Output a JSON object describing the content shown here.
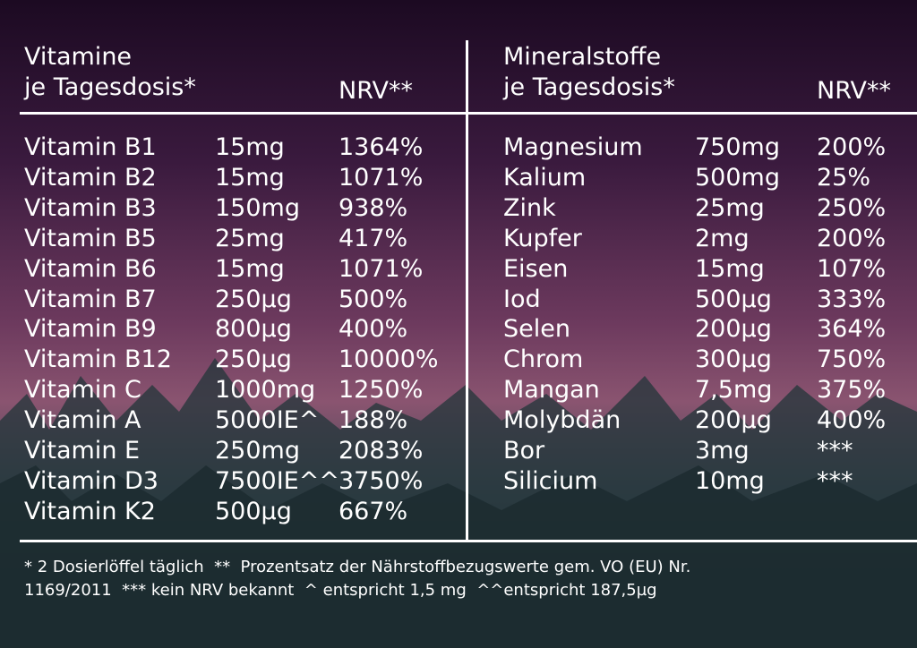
{
  "left": {
    "title": "Vitamine",
    "subtitle": "je Tagesdosis*",
    "nrv_header": "NRV**",
    "rows": [
      [
        "Vitamin B1",
        "15mg",
        "1364%"
      ],
      [
        "Vitamin B2",
        "15mg",
        "1071%"
      ],
      [
        "Vitamin B3",
        "150mg",
        "938%"
      ],
      [
        "Vitamin B5",
        "25mg",
        "417%"
      ],
      [
        "Vitamin B6",
        "15mg",
        "1071%"
      ],
      [
        "Vitamin B7",
        "250µg",
        "500%"
      ],
      [
        "Vitamin B9",
        "800µg",
        "400%"
      ],
      [
        "Vitamin B12",
        "250µg",
        "10000%"
      ],
      [
        "Vitamin C",
        "1000mg",
        "1250%"
      ],
      [
        "Vitamin A",
        "5000IE^",
        "188%"
      ],
      [
        "Vitamin E",
        "250mg",
        "2083%"
      ],
      [
        "Vitamin D3",
        "7500IE^^",
        "3750%"
      ],
      [
        "Vitamin K2",
        "500µg",
        "667%"
      ]
    ]
  },
  "right": {
    "title": "Mineralstoffe",
    "subtitle": "je Tagesdosis*",
    "nrv_header": "NRV**",
    "rows": [
      [
        "Magnesium",
        "750mg",
        "200%"
      ],
      [
        "Kalium",
        "500mg",
        "25%"
      ],
      [
        "Zink",
        "25mg",
        "250%"
      ],
      [
        "Kupfer",
        "2mg",
        "200%"
      ],
      [
        "Eisen",
        "15mg",
        "107%"
      ],
      [
        "Iod",
        "500µg",
        "333%"
      ],
      [
        "Selen",
        "200µg",
        "364%"
      ],
      [
        "Chrom",
        "300µg",
        "750%"
      ],
      [
        "Mangan",
        "7,5mg",
        "375%"
      ],
      [
        "Molybdän",
        "200µg",
        "400%"
      ],
      [
        "Bor",
        "3mg",
        "***"
      ],
      [
        "Silicium",
        "10mg",
        "***"
      ]
    ]
  },
  "footer": {
    "lines": [
      "* 2 Dosierlöffel täglich  **  Prozentsatz der Nährstoffbezugswerte gem. VO (EU) Nr.",
      "1169/2011  *** kein NRV bekannt  ^ entspricht 1,5 mg  ^^entspricht 187,5µg"
    ]
  }
}
